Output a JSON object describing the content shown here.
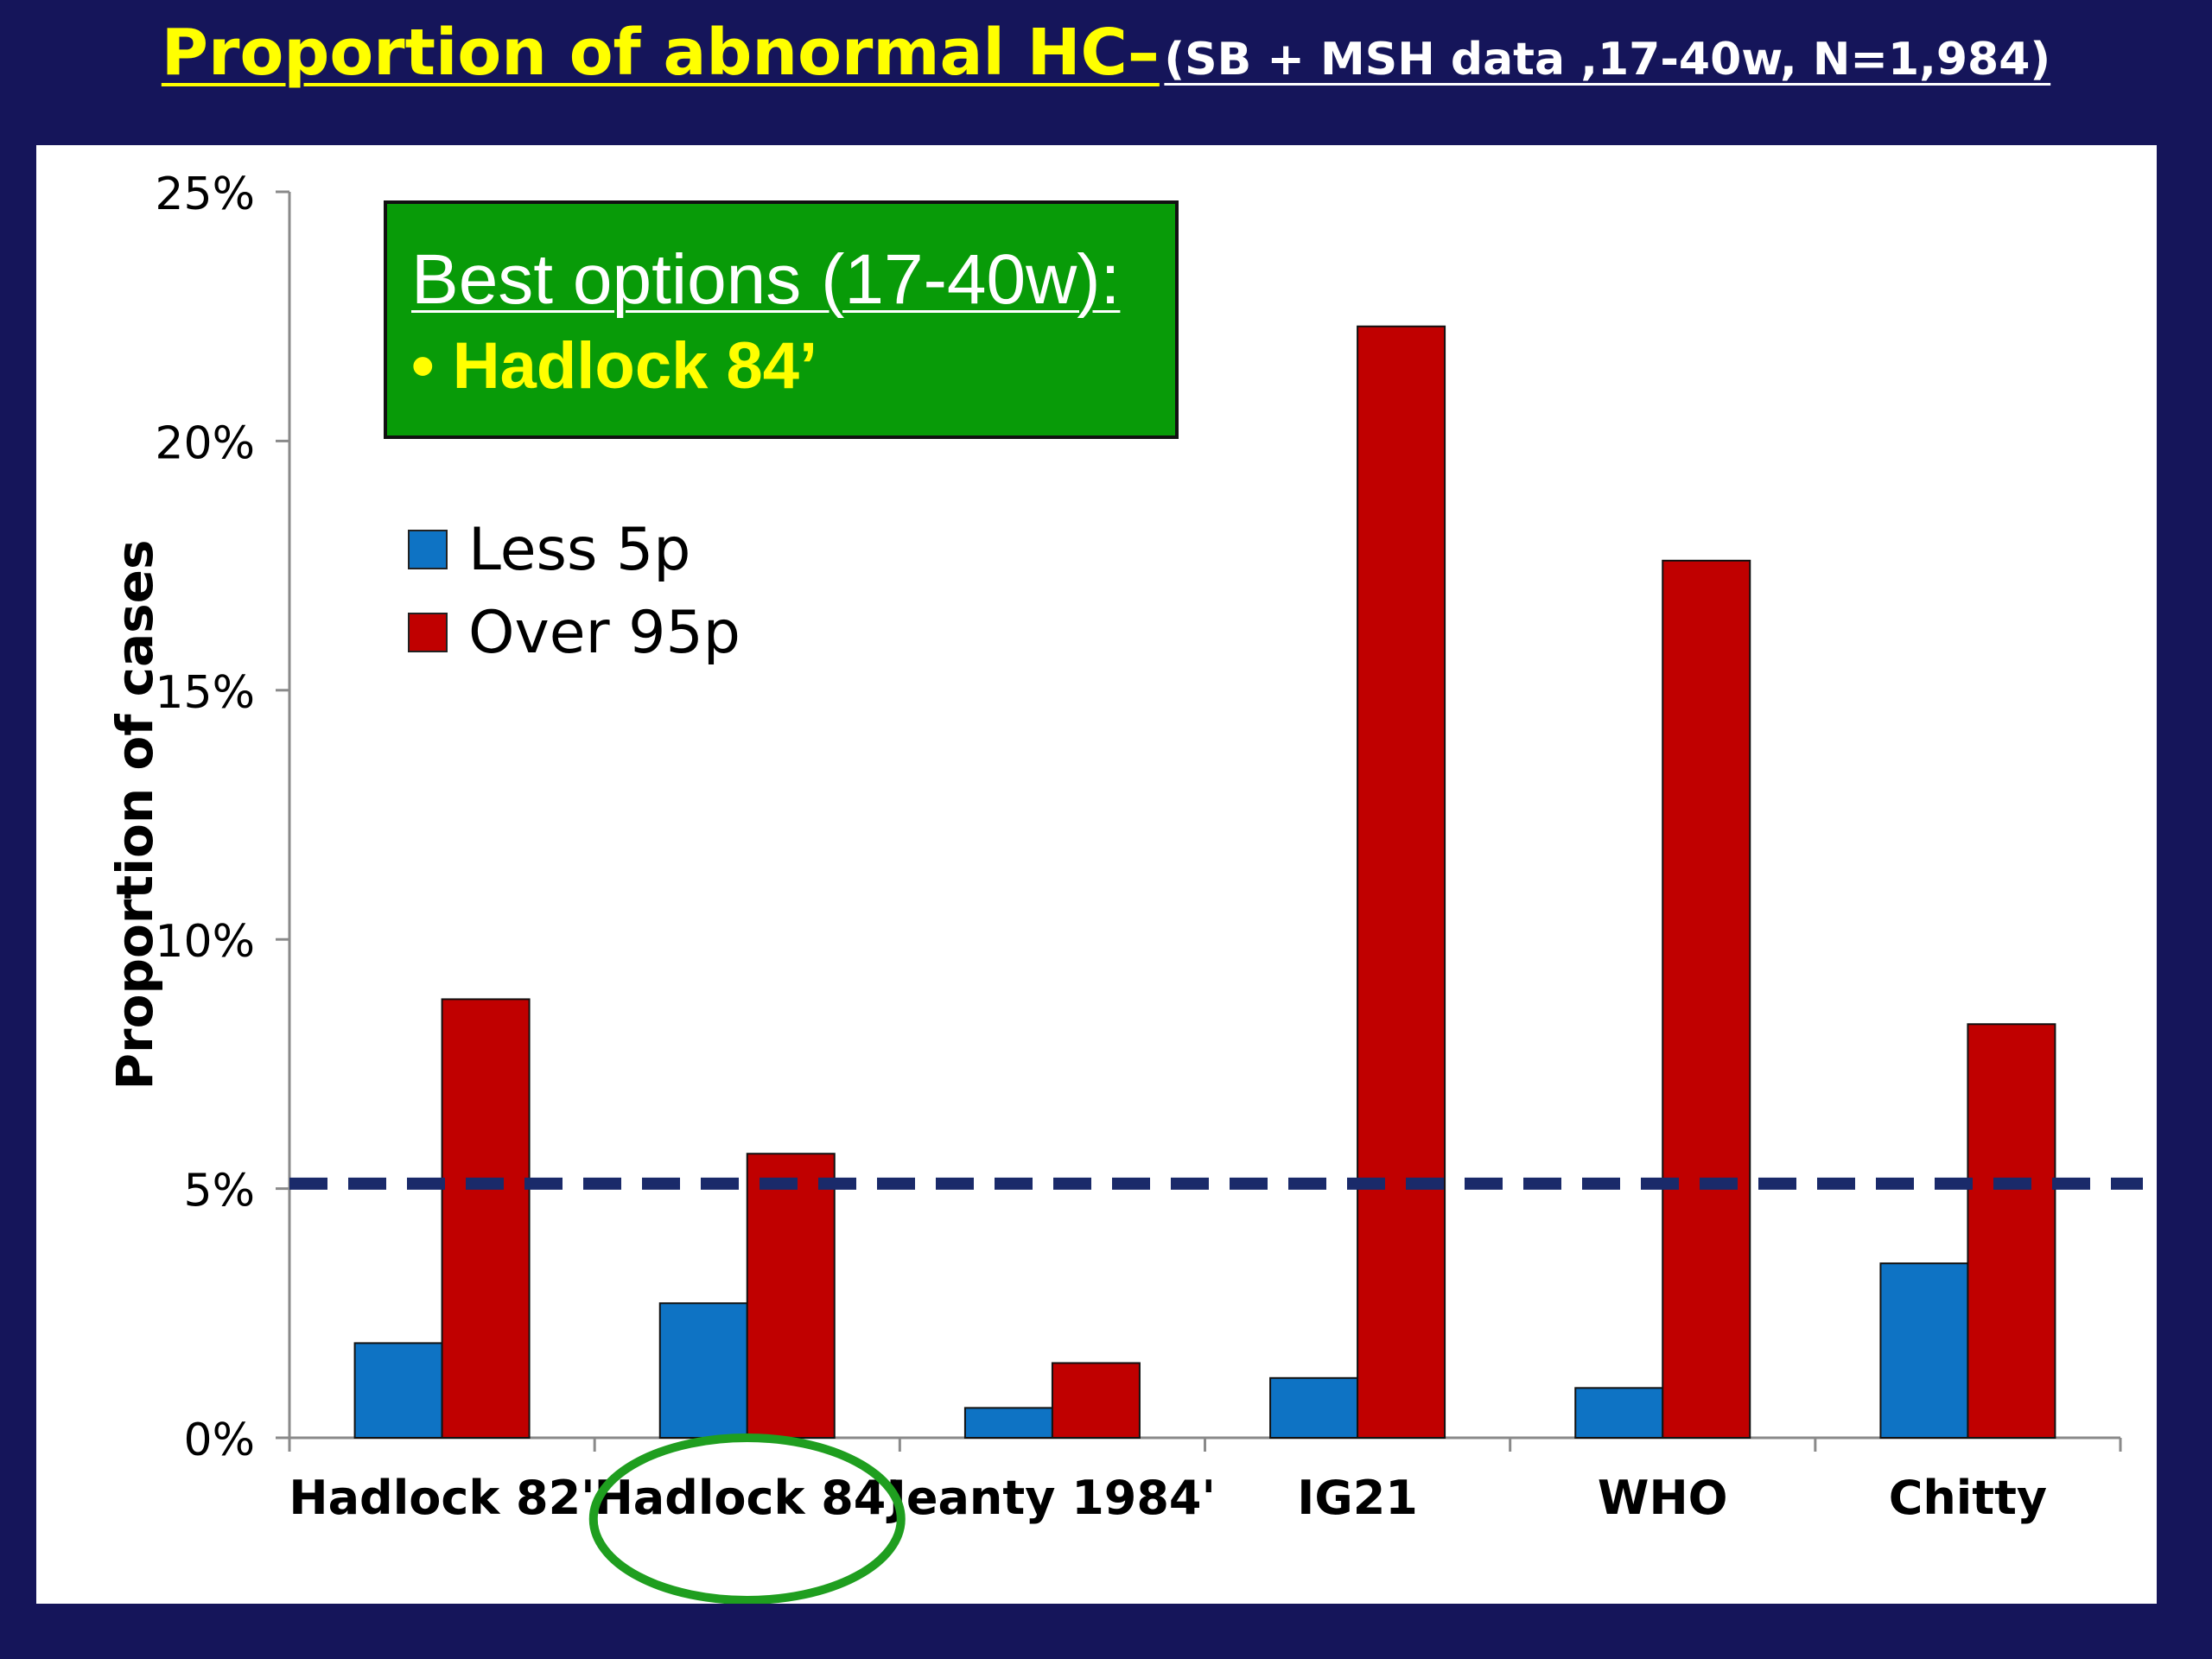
{
  "slide": {
    "title_main": "Proportion of abnormal HC–",
    "title_sub": "(SB + MSH data ,17-40w, N=1,984)"
  },
  "callout": {
    "heading": "Best options (17-40w):",
    "item": "• Hadlock 84’",
    "bg_color": "#089b08",
    "item_color": "#ffff00"
  },
  "chart_data": {
    "type": "bar",
    "ylabel": "Proportion of cases",
    "xlabel": "",
    "ylim": [
      0,
      25
    ],
    "yticks": [
      "0%",
      "5%",
      "10%",
      "15%",
      "20%",
      "25%"
    ],
    "categories": [
      "Hadlock 82'",
      "Hadlock 84'",
      "Jeanty 1984'",
      "IG21",
      "WHO",
      "Chitty"
    ],
    "series": [
      {
        "name": "Less 5p",
        "color": "#0e73c4",
        "values": [
          1.9,
          2.7,
          0.6,
          1.2,
          1.0,
          3.5
        ]
      },
      {
        "name": "Over 95p",
        "color": "#c00000",
        "values": [
          8.8,
          5.7,
          1.5,
          22.3,
          17.6,
          8.3
        ]
      }
    ],
    "reference_line": {
      "value": 5.1,
      "color": "#1a2a6a",
      "style": "dashed"
    },
    "highlight_category": "Hadlock 84'",
    "highlight_color": "#1f9e1f",
    "grid": false,
    "legend_position": "top-left"
  }
}
